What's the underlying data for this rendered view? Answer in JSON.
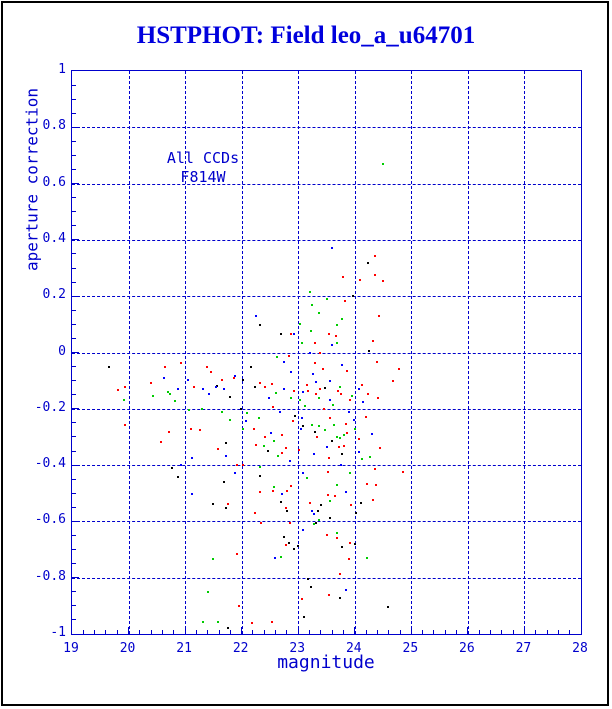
{
  "title": "HSTPHOT: Field leo_a_u64701",
  "colors": {
    "frame_and_text": "#0000cc",
    "title_text": "#0000dd",
    "figure_border": "#000000",
    "background": "#ffffff"
  },
  "chart_data": {
    "type": "scatter",
    "title": "HSTPHOT: Field leo_a_u64701",
    "xlabel": "magnitude",
    "ylabel": "aperture correction",
    "annotations": [
      "All CCDs",
      "F814W"
    ],
    "xlim": [
      19,
      28
    ],
    "ylim": [
      -1,
      1
    ],
    "x_ticks": [
      19,
      20,
      21,
      22,
      23,
      24,
      25,
      26,
      27,
      28
    ],
    "x_tick_labels": [
      "19",
      "20",
      "21",
      "22",
      "23",
      "24",
      "25",
      "26",
      "27",
      "28"
    ],
    "x_minor_step": 0.2,
    "y_ticks": [
      -1,
      -0.8,
      -0.6,
      -0.4,
      -0.2,
      0,
      0.2,
      0.4,
      0.6,
      0.8,
      1
    ],
    "y_tick_labels": [
      "-1",
      "-0.8",
      "-0.6",
      "-0.4",
      "-0.2",
      "0",
      "0.2",
      "0.4",
      "0.6",
      "0.8",
      "1"
    ],
    "y_minor_step": 0.05,
    "grid": "dashed at major ticks, both axes",
    "legend": "none",
    "marker": "2px square",
    "series": [
      {
        "name": "ccd-black",
        "color": "#000000",
        "points": [
          [
            24.24,
            0.319
          ],
          [
            23.96,
            0.202
          ],
          [
            22.32,
            0.096
          ],
          [
            22.69,
            0.064
          ],
          [
            24.26,
            0.004
          ],
          [
            19.65,
            -0.05
          ],
          [
            21.56,
            -0.12
          ],
          [
            21.79,
            -0.159
          ],
          [
            21.72,
            -0.323
          ],
          [
            20.76,
            -0.411
          ],
          [
            20.87,
            -0.443
          ],
          [
            22.16,
            -0.053
          ],
          [
            22.23,
            -0.121
          ],
          [
            22.03,
            -0.099
          ],
          [
            21.98,
            -0.202
          ],
          [
            22.46,
            -0.351
          ],
          [
            23.09,
            -0.262
          ],
          [
            23.3,
            -0.284
          ],
          [
            22.33,
            -0.44
          ],
          [
            21.68,
            -0.461
          ],
          [
            21.49,
            -0.539
          ],
          [
            21.73,
            -0.553
          ],
          [
            22.69,
            -0.532
          ],
          [
            22.81,
            -0.564
          ],
          [
            23.41,
            -0.543
          ],
          [
            23.35,
            -0.564
          ],
          [
            23.31,
            -0.606
          ],
          [
            24.11,
            -0.535
          ],
          [
            24.03,
            -0.571
          ],
          [
            23.56,
            -0.589
          ],
          [
            22.74,
            -0.656
          ],
          [
            22.84,
            -0.677
          ],
          [
            22.92,
            -0.699
          ],
          [
            23.0,
            -0.688
          ],
          [
            23.78,
            -0.691
          ],
          [
            24.01,
            -0.681
          ],
          [
            23.18,
            -0.805
          ],
          [
            23.23,
            -0.833
          ],
          [
            23.74,
            -0.872
          ],
          [
            23.11,
            -0.94
          ],
          [
            24.58,
            -0.904
          ],
          [
            21.75,
            -0.979
          ],
          [
            22.95,
            -0.225
          ],
          [
            23.48,
            -0.125
          ],
          [
            23.6,
            -0.315
          ],
          [
            23.78,
            -0.36
          ]
        ]
      },
      {
        "name": "ccd-red",
        "color": "#ff0000",
        "points": [
          [
            24.36,
            0.344
          ],
          [
            23.8,
            0.269
          ],
          [
            24.1,
            0.259
          ],
          [
            24.36,
            0.277
          ],
          [
            24.5,
            0.255
          ],
          [
            23.82,
            0.184
          ],
          [
            24.43,
            0.13
          ],
          [
            22.87,
            0.064
          ],
          [
            23.54,
            0.064
          ],
          [
            23.67,
            0.06
          ],
          [
            23.3,
            0.032
          ],
          [
            24.33,
            0.04
          ],
          [
            23.39,
            0.0
          ],
          [
            19.93,
            -0.124
          ],
          [
            19.82,
            -0.134
          ],
          [
            20.39,
            -0.11
          ],
          [
            20.64,
            -0.053
          ],
          [
            20.92,
            -0.039
          ],
          [
            21.15,
            -0.121
          ],
          [
            21.38,
            -0.053
          ],
          [
            21.45,
            -0.071
          ],
          [
            21.65,
            -0.099
          ],
          [
            21.86,
            -0.089
          ],
          [
            21.1,
            -0.27
          ],
          [
            19.93,
            -0.259
          ],
          [
            20.72,
            -0.284
          ],
          [
            20.57,
            -0.319
          ],
          [
            21.26,
            -0.277
          ],
          [
            21.58,
            -0.344
          ],
          [
            21.91,
            -0.401
          ],
          [
            22.84,
            -0.014
          ],
          [
            23.29,
            -0.039
          ],
          [
            23.43,
            -0.06
          ],
          [
            23.87,
            -0.067
          ],
          [
            24.4,
            -0.035
          ],
          [
            24.78,
            -0.057
          ],
          [
            22.32,
            -0.11
          ],
          [
            22.53,
            -0.113
          ],
          [
            22.42,
            -0.124
          ],
          [
            22.93,
            -0.135
          ],
          [
            23.18,
            -0.135
          ],
          [
            23.32,
            -0.149
          ],
          [
            23.39,
            -0.131
          ],
          [
            23.76,
            -0.149
          ],
          [
            24.13,
            -0.117
          ],
          [
            24.24,
            -0.149
          ],
          [
            24.41,
            -0.16
          ],
          [
            24.68,
            -0.103
          ],
          [
            23.92,
            -0.167
          ],
          [
            22.21,
            -0.273
          ],
          [
            22.42,
            -0.301
          ],
          [
            22.72,
            -0.294
          ],
          [
            22.79,
            -0.34
          ],
          [
            22.72,
            -0.358
          ],
          [
            23.57,
            -0.234
          ],
          [
            23.72,
            -0.337
          ],
          [
            23.81,
            -0.333
          ],
          [
            23.87,
            -0.287
          ],
          [
            24.08,
            -0.309
          ],
          [
            24.19,
            -0.23
          ],
          [
            24.45,
            -0.34
          ],
          [
            22.03,
            -0.401
          ],
          [
            23.52,
            -0.426
          ],
          [
            24.36,
            -0.415
          ],
          [
            24.85,
            -0.426
          ],
          [
            21.75,
            -0.539
          ],
          [
            21.91,
            -0.716
          ],
          [
            21.95,
            -0.901
          ],
          [
            22.32,
            -0.496
          ],
          [
            22.56,
            -0.493
          ],
          [
            22.81,
            -0.493
          ],
          [
            22.88,
            -0.475
          ],
          [
            22.79,
            -0.553
          ],
          [
            22.24,
            -0.571
          ],
          [
            22.35,
            -0.606
          ],
          [
            22.86,
            -0.606
          ],
          [
            23.2,
            -0.535
          ],
          [
            23.53,
            -0.507
          ],
          [
            23.65,
            -0.511
          ],
          [
            23.93,
            -0.543
          ],
          [
            24.21,
            -0.468
          ],
          [
            24.38,
            -0.472
          ],
          [
            24.33,
            -0.525
          ],
          [
            22.79,
            -0.684
          ],
          [
            23.51,
            -0.649
          ],
          [
            23.69,
            -0.66
          ],
          [
            23.91,
            -0.677
          ],
          [
            23.89,
            -0.734
          ],
          [
            23.74,
            -0.787
          ],
          [
            23.54,
            -0.862
          ],
          [
            23.07,
            -0.876
          ],
          [
            22.53,
            -0.957
          ],
          [
            22.19,
            -0.96
          ],
          [
            22.55,
            -0.195
          ],
          [
            23.45,
            -0.2
          ],
          [
            23.15,
            -0.115
          ],
          [
            23.7,
            -0.135
          ],
          [
            22.9,
            -0.245
          ],
          [
            23.33,
            -0.3
          ],
          [
            23.85,
            -0.255
          ],
          [
            22.25,
            -0.33
          ],
          [
            23.02,
            -0.345
          ],
          [
            23.55,
            -0.375
          ]
        ]
      },
      {
        "name": "ccd-green",
        "color": "#00cc00",
        "points": [
          [
            24.5,
            0.67
          ],
          [
            23.21,
            0.216
          ],
          [
            23.5,
            0.191
          ],
          [
            23.25,
            0.17
          ],
          [
            23.37,
            0.14
          ],
          [
            23.78,
            0.12
          ],
          [
            23.04,
            0.103
          ],
          [
            23.69,
            0.096
          ],
          [
            23.23,
            0.078
          ],
          [
            23.07,
            0.035
          ],
          [
            23.69,
            0.032
          ],
          [
            19.92,
            -0.17
          ],
          [
            20.43,
            -0.156
          ],
          [
            20.69,
            -0.142
          ],
          [
            20.74,
            -0.148
          ],
          [
            20.83,
            -0.174
          ],
          [
            21.06,
            -0.206
          ],
          [
            21.29,
            -0.199
          ],
          [
            21.66,
            -0.213
          ],
          [
            21.8,
            -0.241
          ],
          [
            22.63,
            -0.017
          ],
          [
            22.87,
            -0.16
          ],
          [
            23.03,
            -0.167
          ],
          [
            23.74,
            -0.121
          ],
          [
            23.37,
            -0.16
          ],
          [
            22.1,
            -0.216
          ],
          [
            22.3,
            -0.234
          ],
          [
            22.02,
            -0.27
          ],
          [
            22.4,
            -0.333
          ],
          [
            22.65,
            -0.369
          ],
          [
            23.25,
            -0.259
          ],
          [
            23.37,
            -0.262
          ],
          [
            23.64,
            -0.259
          ],
          [
            23.69,
            -0.301
          ],
          [
            23.74,
            -0.305
          ],
          [
            23.81,
            -0.294
          ],
          [
            24.27,
            -0.372
          ],
          [
            22.32,
            -0.408
          ],
          [
            23.16,
            -0.447
          ],
          [
            23.92,
            -0.429
          ],
          [
            21.5,
            -0.734
          ],
          [
            21.4,
            -0.851
          ],
          [
            21.59,
            -0.957
          ],
          [
            22.58,
            -0.479
          ],
          [
            23.36,
            -0.596
          ],
          [
            23.28,
            -0.61
          ],
          [
            23.56,
            -0.528
          ],
          [
            23.68,
            -0.472
          ],
          [
            22.7,
            -0.727
          ],
          [
            23.68,
            -0.642
          ],
          [
            24.21,
            -0.73
          ],
          [
            21.31,
            -0.957
          ],
          [
            23.12,
            -0.19
          ],
          [
            23.62,
            -0.185
          ],
          [
            22.6,
            -0.145
          ],
          [
            23.95,
            -0.155
          ],
          [
            23.47,
            -0.275
          ],
          [
            24.0,
            -0.27
          ],
          [
            22.58,
            -0.315
          ],
          [
            24.12,
            -0.38
          ]
        ]
      },
      {
        "name": "ccd-blue",
        "color": "#0000ff",
        "points": [
          [
            23.6,
            0.372
          ],
          [
            22.26,
            0.13
          ],
          [
            22.93,
            0.064
          ],
          [
            23.6,
            0.028
          ],
          [
            23.2,
            0.0
          ],
          [
            20.62,
            -0.089
          ],
          [
            20.87,
            -0.128
          ],
          [
            21.05,
            -0.096
          ],
          [
            21.31,
            -0.131
          ],
          [
            21.42,
            -0.149
          ],
          [
            21.54,
            -0.124
          ],
          [
            21.68,
            -0.131
          ],
          [
            21.88,
            -0.082
          ],
          [
            21.13,
            -0.376
          ],
          [
            21.72,
            -0.369
          ],
          [
            20.92,
            -0.401
          ],
          [
            21.89,
            -0.429
          ],
          [
            22.74,
            -0.035
          ],
          [
            22.87,
            -0.071
          ],
          [
            23.78,
            -0.046
          ],
          [
            22.74,
            -0.131
          ],
          [
            23.27,
            -0.078
          ],
          [
            23.32,
            -0.106
          ],
          [
            23.08,
            -0.142
          ],
          [
            23.57,
            -0.103
          ],
          [
            23.57,
            -0.17
          ],
          [
            24.08,
            -0.131
          ],
          [
            22.07,
            -0.245
          ],
          [
            22.51,
            -0.287
          ],
          [
            22.86,
            -0.387
          ],
          [
            23.06,
            -0.234
          ],
          [
            23.5,
            -0.337
          ],
          [
            23.99,
            -0.241
          ],
          [
            24.08,
            -0.355
          ],
          [
            23.08,
            -0.429
          ],
          [
            23.76,
            -0.401
          ],
          [
            21.13,
            -0.504
          ],
          [
            22.72,
            -0.504
          ],
          [
            23.25,
            -0.564
          ],
          [
            23.28,
            -0.574
          ],
          [
            23.84,
            -0.496
          ],
          [
            22.59,
            -0.73
          ],
          [
            23.08,
            -0.631
          ],
          [
            23.84,
            -0.844
          ],
          [
            22.68,
            -0.21
          ],
          [
            23.9,
            -0.21
          ],
          [
            24.15,
            -0.175
          ],
          [
            23.05,
            -0.27
          ],
          [
            24.3,
            -0.29
          ],
          [
            23.28,
            -0.36
          ],
          [
            22.48,
            -0.16
          ]
        ]
      }
    ]
  }
}
